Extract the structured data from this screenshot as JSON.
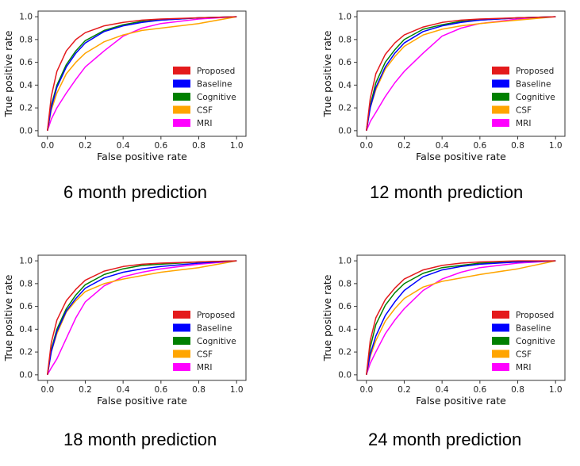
{
  "chart_data": [
    {
      "type": "line",
      "caption": "6 month prediction",
      "xlabel": "False positive rate",
      "ylabel": "True positive rate",
      "xlim": [
        0,
        1
      ],
      "ylim": [
        0,
        1
      ],
      "xticks": [
        "0.0",
        "0.2",
        "0.4",
        "0.6",
        "0.8",
        "1.0"
      ],
      "yticks": [
        "0.0",
        "0.2",
        "0.4",
        "0.6",
        "0.8",
        "1.0"
      ],
      "legend_position": "lower-right",
      "series": [
        {
          "name": "Proposed",
          "color": "#e41a1c",
          "x": [
            0,
            0.02,
            0.05,
            0.1,
            0.15,
            0.2,
            0.3,
            0.4,
            0.5,
            0.6,
            0.8,
            1.0
          ],
          "y": [
            0,
            0.3,
            0.52,
            0.7,
            0.8,
            0.86,
            0.92,
            0.95,
            0.97,
            0.98,
            0.99,
            1.0
          ]
        },
        {
          "name": "Baseline",
          "color": "#0000ff",
          "x": [
            0,
            0.02,
            0.05,
            0.1,
            0.15,
            0.2,
            0.3,
            0.4,
            0.5,
            0.6,
            0.8,
            1.0
          ],
          "y": [
            0,
            0.2,
            0.38,
            0.56,
            0.68,
            0.77,
            0.87,
            0.92,
            0.95,
            0.97,
            0.99,
            1.0
          ]
        },
        {
          "name": "Cognitive",
          "color": "#008000",
          "x": [
            0,
            0.02,
            0.05,
            0.1,
            0.15,
            0.2,
            0.3,
            0.4,
            0.5,
            0.6,
            0.8,
            1.0
          ],
          "y": [
            0,
            0.22,
            0.4,
            0.58,
            0.7,
            0.79,
            0.88,
            0.93,
            0.96,
            0.97,
            0.99,
            1.0
          ]
        },
        {
          "name": "CSF",
          "color": "#ffa500",
          "x": [
            0,
            0.02,
            0.05,
            0.1,
            0.15,
            0.2,
            0.3,
            0.4,
            0.5,
            0.6,
            0.8,
            1.0
          ],
          "y": [
            0,
            0.18,
            0.33,
            0.5,
            0.6,
            0.68,
            0.78,
            0.84,
            0.88,
            0.9,
            0.94,
            1.0
          ]
        },
        {
          "name": "MRI",
          "color": "#ff00ff",
          "x": [
            0,
            0.02,
            0.05,
            0.1,
            0.15,
            0.2,
            0.3,
            0.4,
            0.5,
            0.6,
            0.8,
            1.0
          ],
          "y": [
            0,
            0.1,
            0.2,
            0.33,
            0.45,
            0.56,
            0.7,
            0.83,
            0.9,
            0.94,
            0.98,
            1.0
          ]
        }
      ]
    },
    {
      "type": "line",
      "caption": "12 month prediction",
      "xlabel": "False positive rate",
      "ylabel": "True positive rate",
      "xlim": [
        0,
        1
      ],
      "ylim": [
        0,
        1
      ],
      "xticks": [
        "0.0",
        "0.2",
        "0.4",
        "0.6",
        "0.8",
        "1.0"
      ],
      "yticks": [
        "0.0",
        "0.2",
        "0.4",
        "0.6",
        "0.8",
        "1.0"
      ],
      "legend_position": "lower-right",
      "series": [
        {
          "name": "Proposed",
          "color": "#e41a1c",
          "x": [
            0,
            0.02,
            0.05,
            0.1,
            0.15,
            0.2,
            0.3,
            0.4,
            0.5,
            0.6,
            0.8,
            1.0
          ],
          "y": [
            0,
            0.28,
            0.5,
            0.67,
            0.77,
            0.84,
            0.91,
            0.95,
            0.97,
            0.98,
            0.99,
            1.0
          ]
        },
        {
          "name": "Baseline",
          "color": "#0000ff",
          "x": [
            0,
            0.02,
            0.05,
            0.1,
            0.15,
            0.2,
            0.3,
            0.4,
            0.5,
            0.6,
            0.8,
            1.0
          ],
          "y": [
            0,
            0.2,
            0.38,
            0.56,
            0.68,
            0.77,
            0.87,
            0.92,
            0.95,
            0.97,
            0.99,
            1.0
          ]
        },
        {
          "name": "Cognitive",
          "color": "#008000",
          "x": [
            0,
            0.02,
            0.05,
            0.1,
            0.15,
            0.2,
            0.3,
            0.4,
            0.5,
            0.6,
            0.8,
            1.0
          ],
          "y": [
            0,
            0.22,
            0.42,
            0.6,
            0.71,
            0.8,
            0.89,
            0.93,
            0.96,
            0.97,
            0.99,
            1.0
          ]
        },
        {
          "name": "CSF",
          "color": "#ffa500",
          "x": [
            0,
            0.02,
            0.05,
            0.1,
            0.15,
            0.2,
            0.3,
            0.4,
            0.5,
            0.6,
            0.8,
            1.0
          ],
          "y": [
            0,
            0.2,
            0.36,
            0.54,
            0.65,
            0.74,
            0.84,
            0.89,
            0.92,
            0.94,
            0.97,
            1.0
          ]
        },
        {
          "name": "MRI",
          "color": "#ff00ff",
          "x": [
            0,
            0.02,
            0.05,
            0.1,
            0.15,
            0.2,
            0.3,
            0.4,
            0.5,
            0.6,
            0.8,
            1.0
          ],
          "y": [
            0,
            0.08,
            0.16,
            0.3,
            0.42,
            0.52,
            0.68,
            0.83,
            0.9,
            0.94,
            0.98,
            1.0
          ]
        }
      ]
    },
    {
      "type": "line",
      "caption": "18 month prediction",
      "xlabel": "False positive rate",
      "ylabel": "True positive rate",
      "xlim": [
        0,
        1
      ],
      "ylim": [
        0,
        1
      ],
      "xticks": [
        "0.0",
        "0.2",
        "0.4",
        "0.6",
        "0.8",
        "1.0"
      ],
      "yticks": [
        "0.0",
        "0.2",
        "0.4",
        "0.6",
        "0.8",
        "1.0"
      ],
      "legend_position": "lower-right",
      "series": [
        {
          "name": "Proposed",
          "color": "#e41a1c",
          "x": [
            0,
            0.02,
            0.05,
            0.1,
            0.15,
            0.2,
            0.3,
            0.4,
            0.5,
            0.6,
            0.8,
            1.0
          ],
          "y": [
            0,
            0.28,
            0.48,
            0.65,
            0.75,
            0.83,
            0.91,
            0.95,
            0.97,
            0.98,
            0.99,
            1.0
          ]
        },
        {
          "name": "Baseline",
          "color": "#0000ff",
          "x": [
            0,
            0.02,
            0.05,
            0.1,
            0.15,
            0.2,
            0.3,
            0.4,
            0.5,
            0.6,
            0.8,
            1.0
          ],
          "y": [
            0,
            0.2,
            0.38,
            0.56,
            0.67,
            0.76,
            0.85,
            0.9,
            0.93,
            0.95,
            0.98,
            1.0
          ]
        },
        {
          "name": "Cognitive",
          "color": "#008000",
          "x": [
            0,
            0.02,
            0.05,
            0.1,
            0.15,
            0.2,
            0.3,
            0.4,
            0.5,
            0.6,
            0.8,
            1.0
          ],
          "y": [
            0,
            0.22,
            0.4,
            0.58,
            0.7,
            0.79,
            0.88,
            0.93,
            0.96,
            0.97,
            0.99,
            1.0
          ]
        },
        {
          "name": "CSF",
          "color": "#ffa500",
          "x": [
            0,
            0.02,
            0.05,
            0.1,
            0.15,
            0.2,
            0.3,
            0.4,
            0.5,
            0.6,
            0.8,
            1.0
          ],
          "y": [
            0,
            0.2,
            0.36,
            0.55,
            0.65,
            0.73,
            0.8,
            0.84,
            0.87,
            0.9,
            0.94,
            1.0
          ]
        },
        {
          "name": "MRI",
          "color": "#ff00ff",
          "x": [
            0,
            0.02,
            0.05,
            0.1,
            0.15,
            0.2,
            0.3,
            0.4,
            0.5,
            0.6,
            0.8,
            1.0
          ],
          "y": [
            0,
            0.06,
            0.14,
            0.32,
            0.5,
            0.64,
            0.78,
            0.86,
            0.9,
            0.93,
            0.97,
            1.0
          ]
        }
      ]
    },
    {
      "type": "line",
      "caption": "24 month prediction",
      "xlabel": "False positive rate",
      "ylabel": "True positive rate",
      "xlim": [
        0,
        1
      ],
      "ylim": [
        0,
        1
      ],
      "xticks": [
        "0.0",
        "0.2",
        "0.4",
        "0.6",
        "0.8",
        "1.0"
      ],
      "yticks": [
        "0.0",
        "0.2",
        "0.4",
        "0.6",
        "0.8",
        "1.0"
      ],
      "legend_position": "lower-right",
      "series": [
        {
          "name": "Proposed",
          "color": "#e41a1c",
          "x": [
            0,
            0.02,
            0.05,
            0.1,
            0.15,
            0.2,
            0.3,
            0.4,
            0.5,
            0.6,
            0.8,
            1.0
          ],
          "y": [
            0,
            0.3,
            0.5,
            0.66,
            0.76,
            0.84,
            0.92,
            0.96,
            0.98,
            0.99,
            1.0,
            1.0
          ]
        },
        {
          "name": "Baseline",
          "color": "#0000ff",
          "x": [
            0,
            0.02,
            0.05,
            0.1,
            0.15,
            0.2,
            0.3,
            0.4,
            0.5,
            0.6,
            0.8,
            1.0
          ],
          "y": [
            0,
            0.18,
            0.34,
            0.52,
            0.64,
            0.74,
            0.86,
            0.92,
            0.95,
            0.97,
            0.99,
            1.0
          ]
        },
        {
          "name": "Cognitive",
          "color": "#008000",
          "x": [
            0,
            0.02,
            0.05,
            0.1,
            0.15,
            0.2,
            0.3,
            0.4,
            0.5,
            0.6,
            0.8,
            1.0
          ],
          "y": [
            0,
            0.24,
            0.44,
            0.61,
            0.72,
            0.8,
            0.89,
            0.94,
            0.96,
            0.98,
            0.99,
            1.0
          ]
        },
        {
          "name": "CSF",
          "color": "#ffa500",
          "x": [
            0,
            0.02,
            0.05,
            0.1,
            0.15,
            0.2,
            0.3,
            0.4,
            0.5,
            0.6,
            0.8,
            1.0
          ],
          "y": [
            0,
            0.16,
            0.3,
            0.47,
            0.58,
            0.67,
            0.77,
            0.82,
            0.85,
            0.88,
            0.93,
            1.0
          ]
        },
        {
          "name": "MRI",
          "color": "#ff00ff",
          "x": [
            0,
            0.02,
            0.05,
            0.1,
            0.15,
            0.2,
            0.3,
            0.4,
            0.5,
            0.6,
            0.8,
            1.0
          ],
          "y": [
            0,
            0.1,
            0.2,
            0.36,
            0.48,
            0.58,
            0.74,
            0.84,
            0.9,
            0.94,
            0.98,
            1.0
          ]
        }
      ]
    }
  ]
}
